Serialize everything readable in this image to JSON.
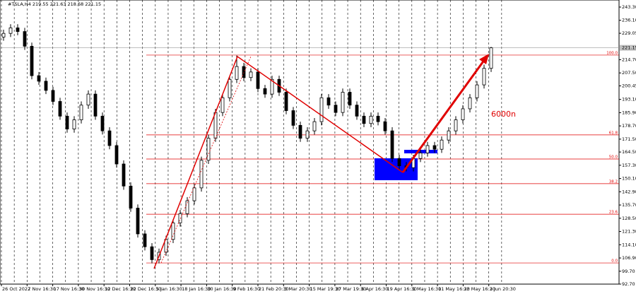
{
  "chart_data": {
    "type": "candlestick",
    "title": "#TSLA,H4 219.55 221.63 218.68 221.15",
    "annotation": "6000n",
    "x_labels": [
      "26 Oct 2022",
      "7 Nov 16:30",
      "17 Nov 16:30",
      "30 Nov 16:30",
      "12 Dec 16:30",
      "22 Dec 16:30",
      "5 Jan 16:30",
      "18 Jan 16:30",
      "30 Jan 16:30",
      "9 Feb 16:30",
      "21 Feb 20:30",
      "3 Mar 20:30",
      "15 Mar 19:30",
      "27 Mar 19:30",
      "6 Apr 16:30",
      "19 Apr 16:30",
      "1 May 16:30",
      "11 May 16:30",
      "23 May 16:30",
      "2 Jun 20:30"
    ],
    "open": [
      227,
      229,
      232,
      230,
      222,
      206,
      203,
      198,
      192,
      184,
      177,
      182,
      190,
      196,
      184,
      176,
      168,
      158,
      146,
      134,
      120,
      113,
      106,
      110,
      117,
      126,
      131,
      138,
      145,
      160,
      172,
      186,
      194,
      204,
      211,
      205,
      208,
      199,
      196,
      204,
      197,
      187,
      179,
      172,
      176,
      181,
      194,
      190,
      186,
      197,
      190,
      184,
      180,
      184,
      181,
      176,
      161,
      157,
      156,
      161,
      164,
      168,
      166,
      171,
      176,
      182,
      188,
      194,
      201,
      210
    ],
    "high": [
      231,
      234,
      234,
      232,
      224,
      208,
      205,
      200,
      194,
      186,
      184,
      192,
      198,
      198,
      186,
      178,
      170,
      160,
      148,
      136,
      122,
      115,
      112,
      119,
      128,
      133,
      140,
      147,
      162,
      174,
      188,
      196,
      206,
      217,
      213,
      210,
      210,
      201,
      206,
      206,
      199,
      189,
      181,
      178,
      183,
      196,
      196,
      192,
      199,
      199,
      192,
      186,
      186,
      186,
      183,
      178,
      163,
      159,
      163,
      166,
      170,
      170,
      173,
      178,
      184,
      190,
      196,
      203,
      212,
      221.63
    ],
    "low": [
      225,
      227,
      228,
      220,
      204,
      201,
      196,
      190,
      182,
      175,
      175,
      180,
      188,
      182,
      174,
      166,
      156,
      144,
      132,
      118,
      111,
      104,
      104,
      108,
      115,
      124,
      129,
      136,
      143,
      158,
      170,
      184,
      192,
      202,
      203,
      203,
      197,
      194,
      194,
      195,
      185,
      177,
      170,
      170,
      174,
      179,
      188,
      184,
      184,
      188,
      182,
      178,
      178,
      179,
      174,
      159,
      155,
      154,
      154,
      159,
      162,
      164,
      164,
      169,
      174,
      180,
      186,
      192,
      199,
      208
    ],
    "close": [
      229,
      232,
      230,
      222,
      206,
      203,
      198,
      192,
      184,
      177,
      182,
      190,
      196,
      184,
      176,
      168,
      158,
      146,
      134,
      120,
      113,
      106,
      110,
      117,
      126,
      131,
      138,
      145,
      160,
      172,
      186,
      194,
      204,
      211,
      205,
      208,
      199,
      196,
      204,
      197,
      187,
      179,
      172,
      176,
      181,
      194,
      190,
      186,
      197,
      190,
      184,
      180,
      184,
      181,
      176,
      161,
      157,
      156,
      161,
      164,
      168,
      166,
      171,
      176,
      182,
      188,
      194,
      201,
      210,
      221.15
    ],
    "color": "#000000",
    "ylim": [
      92.7,
      247.14
    ],
    "yticks": [
      {
        "value": 243.3,
        "label": "243.30"
      },
      {
        "value": 236.1,
        "label": "236.10"
      },
      {
        "value": 229.05,
        "label": "229.05"
      },
      {
        "value": 214.7,
        "label": "214.70"
      },
      {
        "value": 207.5,
        "label": "207.50"
      },
      {
        "value": 200.45,
        "label": "200.45"
      },
      {
        "value": 193.1,
        "label": "193.10"
      },
      {
        "value": 185.9,
        "label": "185.90"
      },
      {
        "value": 178.7,
        "label": "178.70"
      },
      {
        "value": 171.5,
        "label": "171.50"
      },
      {
        "value": 164.5,
        "label": "164.50"
      },
      {
        "value": 157.3,
        "label": "157.30"
      },
      {
        "value": 150.1,
        "label": "150.10"
      },
      {
        "value": 142.9,
        "label": "142.90"
      },
      {
        "value": 135.7,
        "label": "135.70"
      },
      {
        "value": 128.5,
        "label": "128.50"
      },
      {
        "value": 121.3,
        "label": "121.30"
      },
      {
        "value": 114.1,
        "label": "114.10"
      },
      {
        "value": 106.9,
        "label": "106.90"
      },
      {
        "value": 99.7,
        "label": "99.70"
      },
      {
        "value": 92.7,
        "label": "92.70"
      }
    ],
    "last_price": {
      "value": 221.15,
      "label": "221.15"
    },
    "fib_color": "#e00000",
    "fib_levels": [
      {
        "label": "100.0",
        "price": 217.2
      },
      {
        "label": "61.8",
        "price": 173.8
      },
      {
        "label": "50.0",
        "price": 160.7
      },
      {
        "label": "38.2",
        "price": 147.3
      },
      {
        "label": "23.6",
        "price": 130.7
      },
      {
        "label": "0.0",
        "price": 104.2
      }
    ]
  }
}
